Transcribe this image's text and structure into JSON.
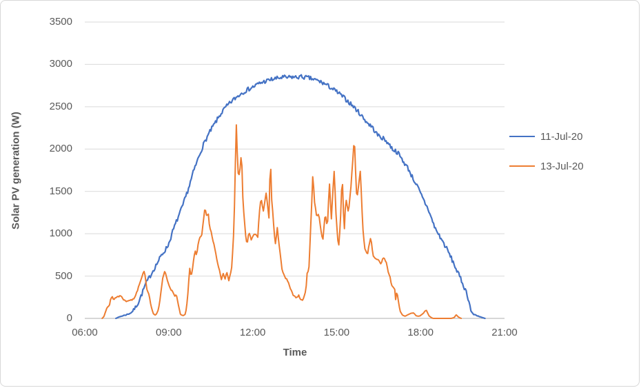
{
  "window": {
    "background": "#ffffff",
    "border_color": "#d7d7d7"
  },
  "chart_data": {
    "type": "line",
    "title": "",
    "xlabel": "Time",
    "ylabel": "Solar PV generation (W)",
    "grid": true,
    "legend_position": "right",
    "x_axis": {
      "min": 6,
      "max": 21,
      "tick_step_hours": 3,
      "ticks": [
        {
          "t": 6,
          "label": "06:00"
        },
        {
          "t": 9,
          "label": "09:00"
        },
        {
          "t": 12,
          "label": "12:00"
        },
        {
          "t": 15,
          "label": "15:00"
        },
        {
          "t": 18,
          "label": "18:00"
        },
        {
          "t": 21,
          "label": "21:00"
        }
      ]
    },
    "y_axis": {
      "min": 0,
      "max": 3500,
      "tick_step": 500,
      "ticks": [
        {
          "v": 0,
          "label": "0"
        },
        {
          "v": 500,
          "label": "500"
        },
        {
          "v": 1000,
          "label": "1000"
        },
        {
          "v": 1500,
          "label": "1500"
        },
        {
          "v": 2000,
          "label": "2000"
        },
        {
          "v": 2500,
          "label": "2500"
        },
        {
          "v": 3000,
          "label": "3000"
        },
        {
          "v": 3500,
          "label": "3500"
        }
      ]
    },
    "style": {
      "gridline_color": "#d9d9d9",
      "axis_line_color": "#bfbfbf",
      "text_color": "#595959"
    },
    "layout": {
      "plot_left": 122,
      "plot_right": 731,
      "plot_top": 31,
      "plot_bottom": 461,
      "sample_step_hours": 0.0333
    },
    "series": [
      {
        "name": "11-Jul-20",
        "color": "#4472C4",
        "stroke_width": 2.2,
        "noise_w": 26,
        "seed": 7,
        "points": [
          [
            7.11,
            0
          ],
          [
            7.25,
            20
          ],
          [
            7.4,
            35
          ],
          [
            7.55,
            50
          ],
          [
            7.67,
            70
          ],
          [
            7.79,
            120
          ],
          [
            7.91,
            185
          ],
          [
            8.03,
            280
          ],
          [
            8.16,
            395
          ],
          [
            8.3,
            480
          ],
          [
            8.45,
            570
          ],
          [
            8.6,
            660
          ],
          [
            8.75,
            750
          ],
          [
            8.9,
            820
          ],
          [
            9.0,
            880
          ],
          [
            9.14,
            1025
          ],
          [
            9.26,
            1130
          ],
          [
            9.38,
            1230
          ],
          [
            9.5,
            1330
          ],
          [
            9.63,
            1460
          ],
          [
            9.75,
            1580
          ],
          [
            9.87,
            1720
          ],
          [
            10.0,
            1840
          ],
          [
            10.12,
            1950
          ],
          [
            10.25,
            2060
          ],
          [
            10.4,
            2160
          ],
          [
            10.55,
            2250
          ],
          [
            10.7,
            2330
          ],
          [
            10.85,
            2410
          ],
          [
            11.0,
            2480
          ],
          [
            11.15,
            2530
          ],
          [
            11.3,
            2580
          ],
          [
            11.45,
            2620
          ],
          [
            11.6,
            2660
          ],
          [
            11.75,
            2690
          ],
          [
            11.9,
            2715
          ],
          [
            12.05,
            2740
          ],
          [
            12.2,
            2770
          ],
          [
            12.35,
            2790
          ],
          [
            12.5,
            2805
          ],
          [
            12.65,
            2820
          ],
          [
            12.8,
            2830
          ],
          [
            12.95,
            2840
          ],
          [
            13.1,
            2848
          ],
          [
            13.25,
            2842
          ],
          [
            13.4,
            2852
          ],
          [
            13.55,
            2846
          ],
          [
            13.7,
            2855
          ],
          [
            13.85,
            2848
          ],
          [
            14.0,
            2840
          ],
          [
            14.15,
            2825
          ],
          [
            14.3,
            2810
          ],
          [
            14.45,
            2790
          ],
          [
            14.6,
            2765
          ],
          [
            14.75,
            2735
          ],
          [
            14.9,
            2700
          ],
          [
            15.05,
            2665
          ],
          [
            15.2,
            2625
          ],
          [
            15.35,
            2580
          ],
          [
            15.5,
            2535
          ],
          [
            15.65,
            2485
          ],
          [
            15.8,
            2430
          ],
          [
            15.95,
            2370
          ],
          [
            16.1,
            2310
          ],
          [
            16.27,
            2260
          ],
          [
            16.45,
            2170
          ],
          [
            16.66,
            2125
          ],
          [
            16.81,
            2085
          ],
          [
            17.0,
            2000
          ],
          [
            17.18,
            1960
          ],
          [
            17.37,
            1860
          ],
          [
            17.55,
            1775
          ],
          [
            17.72,
            1660
          ],
          [
            17.89,
            1555
          ],
          [
            18.03,
            1450
          ],
          [
            18.15,
            1370
          ],
          [
            18.28,
            1285
          ],
          [
            18.4,
            1170
          ],
          [
            18.52,
            1065
          ],
          [
            18.7,
            960
          ],
          [
            18.82,
            890
          ],
          [
            18.94,
            820
          ],
          [
            19.07,
            730
          ],
          [
            19.19,
            645
          ],
          [
            19.3,
            560
          ],
          [
            19.43,
            470
          ],
          [
            19.53,
            390
          ],
          [
            19.63,
            315
          ],
          [
            19.7,
            240
          ],
          [
            19.75,
            170
          ],
          [
            19.8,
            90
          ],
          [
            19.87,
            50
          ],
          [
            19.97,
            40
          ],
          [
            20.08,
            25
          ],
          [
            20.2,
            10
          ],
          [
            20.3,
            0
          ]
        ]
      },
      {
        "name": "13-Jul-20",
        "color": "#ED7D31",
        "stroke_width": 2.0,
        "noise_w": 10,
        "seed": 13,
        "points": [
          [
            6.62,
            0
          ],
          [
            6.68,
            20
          ],
          [
            6.75,
            90
          ],
          [
            6.8,
            140
          ],
          [
            6.88,
            150
          ],
          [
            6.93,
            230
          ],
          [
            6.98,
            255
          ],
          [
            7.03,
            225
          ],
          [
            7.1,
            245
          ],
          [
            7.2,
            260
          ],
          [
            7.28,
            268
          ],
          [
            7.35,
            240
          ],
          [
            7.42,
            213
          ],
          [
            7.5,
            205
          ],
          [
            7.58,
            222
          ],
          [
            7.66,
            212
          ],
          [
            7.74,
            230
          ],
          [
            7.8,
            260
          ],
          [
            7.88,
            330
          ],
          [
            7.96,
            420
          ],
          [
            8.02,
            470
          ],
          [
            8.08,
            540
          ],
          [
            8.12,
            560
          ],
          [
            8.18,
            450
          ],
          [
            8.23,
            320
          ],
          [
            8.3,
            290
          ],
          [
            8.36,
            160
          ],
          [
            8.4,
            100
          ],
          [
            8.45,
            55
          ],
          [
            8.52,
            40
          ],
          [
            8.58,
            60
          ],
          [
            8.64,
            120
          ],
          [
            8.72,
            300
          ],
          [
            8.79,
            480
          ],
          [
            8.86,
            565
          ],
          [
            8.92,
            480
          ],
          [
            8.98,
            415
          ],
          [
            9.06,
            340
          ],
          [
            9.14,
            318
          ],
          [
            9.2,
            265
          ],
          [
            9.28,
            277
          ],
          [
            9.35,
            150
          ],
          [
            9.42,
            49
          ],
          [
            9.5,
            33
          ],
          [
            9.58,
            40
          ],
          [
            9.64,
            130
          ],
          [
            9.69,
            310
          ],
          [
            9.72,
            472
          ],
          [
            9.75,
            594
          ],
          [
            9.8,
            497
          ],
          [
            9.84,
            560
          ],
          [
            9.89,
            700
          ],
          [
            9.94,
            806
          ],
          [
            9.99,
            740
          ],
          [
            10.06,
            887
          ],
          [
            10.14,
            985
          ],
          [
            10.17,
            960
          ],
          [
            10.28,
            1270
          ],
          [
            10.31,
            1286
          ],
          [
            10.36,
            1190
          ],
          [
            10.41,
            1245
          ],
          [
            10.45,
            1107
          ],
          [
            10.5,
            1042
          ],
          [
            10.56,
            944
          ],
          [
            10.63,
            870
          ],
          [
            10.68,
            765
          ],
          [
            10.76,
            635
          ],
          [
            10.83,
            553
          ],
          [
            10.88,
            456
          ],
          [
            10.95,
            521
          ],
          [
            11.01,
            456
          ],
          [
            11.08,
            553
          ],
          [
            11.15,
            440
          ],
          [
            11.25,
            602
          ],
          [
            11.29,
            806
          ],
          [
            11.33,
            1066
          ],
          [
            11.38,
            1800
          ],
          [
            11.41,
            2330
          ],
          [
            11.45,
            1950
          ],
          [
            11.49,
            1640
          ],
          [
            11.55,
            1780
          ],
          [
            11.6,
            1960
          ],
          [
            11.66,
            1310
          ],
          [
            11.7,
            1188
          ],
          [
            11.76,
            928
          ],
          [
            11.81,
            887
          ],
          [
            11.87,
            1025
          ],
          [
            11.95,
            920
          ],
          [
            12.06,
            1009
          ],
          [
            12.18,
            960
          ],
          [
            12.26,
            1351
          ],
          [
            12.31,
            1392
          ],
          [
            12.38,
            1270
          ],
          [
            12.48,
            1473
          ],
          [
            12.54,
            1310
          ],
          [
            12.59,
            1164
          ],
          [
            12.63,
            1960
          ],
          [
            12.68,
            1400
          ],
          [
            12.73,
            1204
          ],
          [
            12.77,
            1025
          ],
          [
            12.81,
            863
          ],
          [
            12.88,
            1066
          ],
          [
            12.97,
            798
          ],
          [
            13.05,
            578
          ],
          [
            13.12,
            513
          ],
          [
            13.19,
            470
          ],
          [
            13.25,
            440
          ],
          [
            13.34,
            358
          ],
          [
            13.42,
            293
          ],
          [
            13.49,
            265
          ],
          [
            13.57,
            240
          ],
          [
            13.64,
            280
          ],
          [
            13.71,
            230
          ],
          [
            13.77,
            212
          ],
          [
            13.84,
            260
          ],
          [
            13.9,
            334
          ],
          [
            13.96,
            594
          ],
          [
            14.0,
            520
          ],
          [
            14.06,
            985
          ],
          [
            14.1,
            1270
          ],
          [
            14.15,
            1700
          ],
          [
            14.21,
            1367
          ],
          [
            14.29,
            1204
          ],
          [
            14.36,
            1245
          ],
          [
            14.44,
            1042
          ],
          [
            14.51,
            920
          ],
          [
            14.59,
            1229
          ],
          [
            14.67,
            1083
          ],
          [
            14.74,
            1612
          ],
          [
            14.81,
            1164
          ],
          [
            14.91,
            1758
          ],
          [
            14.99,
            1148
          ],
          [
            15.07,
            822
          ],
          [
            15.13,
            1100
          ],
          [
            15.2,
            1700
          ],
          [
            15.27,
            1000
          ],
          [
            15.33,
            1430
          ],
          [
            15.42,
            1250
          ],
          [
            15.5,
            1500
          ],
          [
            15.63,
            2140
          ],
          [
            15.72,
            1392
          ],
          [
            15.85,
            1758
          ],
          [
            15.93,
            1083
          ],
          [
            16.0,
            838
          ],
          [
            16.1,
            757
          ],
          [
            16.22,
            960
          ],
          [
            16.3,
            740
          ],
          [
            16.37,
            716
          ],
          [
            16.47,
            700
          ],
          [
            16.57,
            650
          ],
          [
            16.68,
            716
          ],
          [
            16.78,
            659
          ],
          [
            16.86,
            521
          ],
          [
            16.91,
            497
          ],
          [
            16.96,
            391
          ],
          [
            17.08,
            334
          ],
          [
            17.11,
            228
          ],
          [
            17.16,
            318
          ],
          [
            17.23,
            150
          ],
          [
            17.28,
            73
          ],
          [
            17.35,
            40
          ],
          [
            17.45,
            25
          ],
          [
            17.55,
            45
          ],
          [
            17.65,
            60
          ],
          [
            17.75,
            65
          ],
          [
            17.85,
            30
          ],
          [
            17.95,
            25
          ],
          [
            18.05,
            45
          ],
          [
            18.15,
            81
          ],
          [
            18.21,
            100
          ],
          [
            18.3,
            30
          ],
          [
            18.38,
            10
          ],
          [
            18.45,
            0
          ],
          [
            19.1,
            0
          ],
          [
            19.2,
            10
          ],
          [
            19.28,
            45
          ],
          [
            19.35,
            15
          ],
          [
            19.45,
            0
          ]
        ]
      }
    ]
  }
}
